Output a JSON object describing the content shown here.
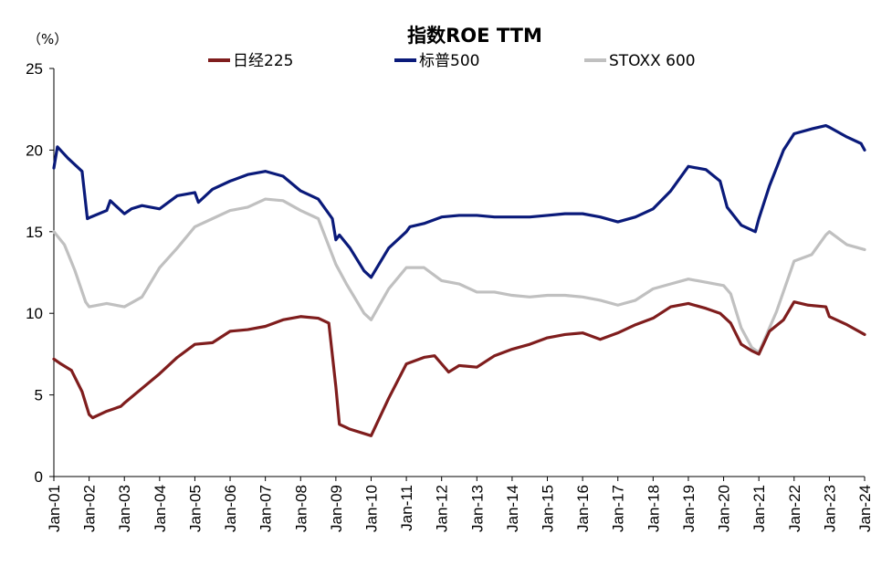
{
  "chart_data": {
    "type": "line",
    "title": "指数ROE TTM",
    "unit_label": "（%）",
    "ylim": [
      0,
      25
    ],
    "yticks": [
      "0",
      "5",
      "10",
      "15",
      "20",
      "25"
    ],
    "xlim": [
      2001.0,
      2024.0
    ],
    "xtick_labels": [
      "Jan-01",
      "Jan-02",
      "Jan-03",
      "Jan-04",
      "Jan-05",
      "Jan-06",
      "Jan-07",
      "Jan-08",
      "Jan-09",
      "Jan-10",
      "Jan-11",
      "Jan-12",
      "Jan-13",
      "Jan-14",
      "Jan-15",
      "Jan-16",
      "Jan-17",
      "Jan-18",
      "Jan-19",
      "Jan-20",
      "Jan-21",
      "Jan-22",
      "Jan-23",
      "Jan-24"
    ],
    "legend_position": "top",
    "series": [
      {
        "name": "日经225",
        "color": "#7f1d1d",
        "x": [
          2001.0,
          2001.2,
          2001.5,
          2001.8,
          2002.0,
          2002.1,
          2002.5,
          2002.9,
          2003.0,
          2003.5,
          2004.0,
          2004.5,
          2005.0,
          2005.5,
          2006.0,
          2006.5,
          2007.0,
          2007.5,
          2008.0,
          2008.5,
          2008.8,
          2009.0,
          2009.1,
          2009.4,
          2010.0,
          2010.5,
          2011.0,
          2011.5,
          2011.8,
          2012.0,
          2012.2,
          2012.5,
          2013.0,
          2013.5,
          2014.0,
          2014.5,
          2015.0,
          2015.5,
          2016.0,
          2016.5,
          2017.0,
          2017.5,
          2018.0,
          2018.5,
          2019.0,
          2019.5,
          2019.9,
          2020.2,
          2020.5,
          2020.8,
          2021.0,
          2021.3,
          2021.7,
          2022.0,
          2022.4,
          2022.9,
          2023.0,
          2023.5,
          2024.0
        ],
        "values": [
          7.2,
          6.9,
          6.5,
          5.2,
          3.8,
          3.6,
          4.0,
          4.3,
          4.5,
          5.4,
          6.3,
          7.3,
          8.1,
          8.2,
          8.9,
          9.0,
          9.2,
          9.6,
          9.8,
          9.7,
          9.4,
          5.5,
          3.2,
          2.9,
          2.5,
          4.8,
          6.9,
          7.3,
          7.4,
          6.9,
          6.4,
          6.8,
          6.7,
          7.4,
          7.8,
          8.1,
          8.5,
          8.7,
          8.8,
          8.4,
          8.8,
          9.3,
          9.7,
          10.4,
          10.6,
          10.3,
          10.0,
          9.4,
          8.1,
          7.7,
          7.5,
          8.9,
          9.6,
          10.7,
          10.5,
          10.4,
          9.8,
          9.3,
          8.7
        ]
      },
      {
        "name": "标普500",
        "color": "#0a1a7a",
        "x": [
          2001.0,
          2001.1,
          2001.4,
          2001.8,
          2001.95,
          2002.05,
          2002.5,
          2002.6,
          2003.0,
          2003.2,
          2003.5,
          2004.0,
          2004.5,
          2005.0,
          2005.1,
          2005.5,
          2006.0,
          2006.5,
          2007.0,
          2007.5,
          2008.0,
          2008.5,
          2008.9,
          2009.0,
          2009.1,
          2009.4,
          2009.8,
          2010.0,
          2010.5,
          2011.0,
          2011.1,
          2011.5,
          2012.0,
          2012.5,
          2013.0,
          2013.5,
          2014.0,
          2014.5,
          2015.0,
          2015.5,
          2016.0,
          2016.5,
          2017.0,
          2017.5,
          2018.0,
          2018.5,
          2019.0,
          2019.5,
          2019.9,
          2020.1,
          2020.5,
          2020.9,
          2021.0,
          2021.3,
          2021.7,
          2022.0,
          2022.5,
          2022.9,
          2023.0,
          2023.5,
          2023.9,
          2024.0
        ],
        "values": [
          18.9,
          20.2,
          19.5,
          18.7,
          15.8,
          15.9,
          16.3,
          16.9,
          16.1,
          16.4,
          16.6,
          16.4,
          17.2,
          17.4,
          16.8,
          17.6,
          18.1,
          18.5,
          18.7,
          18.4,
          17.5,
          17.0,
          15.8,
          14.5,
          14.8,
          14.0,
          12.6,
          12.2,
          14.0,
          15.0,
          15.3,
          15.5,
          15.9,
          16.0,
          16.0,
          15.9,
          15.9,
          15.9,
          16.0,
          16.1,
          16.1,
          15.9,
          15.6,
          15.9,
          16.4,
          17.5,
          19.0,
          18.8,
          18.1,
          16.5,
          15.4,
          15.0,
          15.8,
          17.8,
          20.0,
          21.0,
          21.3,
          21.5,
          21.4,
          20.8,
          20.4,
          20.0
        ]
      },
      {
        "name": "STOXX 600",
        "color": "#c0c0c0",
        "x": [
          2001.0,
          2001.3,
          2001.6,
          2001.9,
          2002.0,
          2002.5,
          2003.0,
          2003.5,
          2004.0,
          2004.5,
          2005.0,
          2005.5,
          2006.0,
          2006.5,
          2007.0,
          2007.5,
          2008.0,
          2008.5,
          2009.0,
          2009.3,
          2009.8,
          2010.0,
          2010.5,
          2011.0,
          2011.5,
          2012.0,
          2012.5,
          2013.0,
          2013.5,
          2014.0,
          2014.5,
          2015.0,
          2015.5,
          2016.0,
          2016.5,
          2017.0,
          2017.5,
          2018.0,
          2018.5,
          2019.0,
          2019.5,
          2020.0,
          2020.2,
          2020.5,
          2020.8,
          2021.0,
          2021.5,
          2022.0,
          2022.5,
          2022.9,
          2023.0,
          2023.5,
          2024.0
        ],
        "values": [
          15.0,
          14.2,
          12.6,
          10.7,
          10.4,
          10.6,
          10.4,
          11.0,
          12.8,
          14.0,
          15.3,
          15.8,
          16.3,
          16.5,
          17.0,
          16.9,
          16.3,
          15.8,
          13.0,
          11.8,
          10.0,
          9.6,
          11.5,
          12.8,
          12.8,
          12.0,
          11.8,
          11.3,
          11.3,
          11.1,
          11.0,
          11.1,
          11.1,
          11.0,
          10.8,
          10.5,
          10.8,
          11.5,
          11.8,
          12.1,
          11.9,
          11.7,
          11.2,
          9.1,
          7.9,
          7.6,
          10.1,
          13.2,
          13.6,
          14.8,
          15.0,
          14.2,
          13.9
        ]
      }
    ]
  }
}
